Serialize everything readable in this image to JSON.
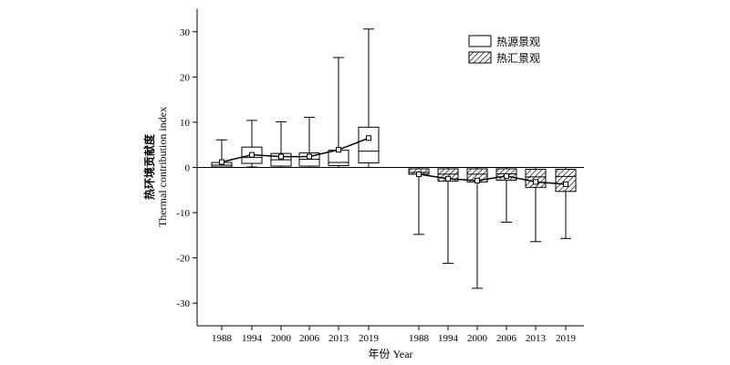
{
  "chart_data": {
    "type": "box",
    "title": "",
    "ylabel_cn": "热环境贡献度",
    "ylabel_en": "Thermal contribution index",
    "xlabel": "年份 Year",
    "ylim": [
      -35,
      35
    ],
    "yticks": [
      30,
      20,
      10,
      0,
      -10,
      -20,
      -30
    ],
    "grid": false,
    "legend_position": "top-right",
    "groups": [
      {
        "name": "热源景观",
        "pattern": "solid",
        "categories": [
          "1988",
          "1994",
          "2000",
          "2006",
          "2013",
          "2019"
        ],
        "boxes": [
          {
            "min": 0.0,
            "q1": 0.1,
            "median": 0.5,
            "q3": 1.1,
            "max": 6.1,
            "mean": 1.2
          },
          {
            "min": 0.1,
            "q1": 0.9,
            "median": 2.2,
            "q3": 4.5,
            "max": 10.4,
            "mean": 2.8
          },
          {
            "min": 0.0,
            "q1": 0.3,
            "median": 1.7,
            "q3": 3.1,
            "max": 10.1,
            "mean": 2.4
          },
          {
            "min": 0.0,
            "q1": 0.3,
            "median": 1.8,
            "q3": 3.2,
            "max": 11.1,
            "mean": 2.4
          },
          {
            "min": 0.0,
            "q1": 0.4,
            "median": 1.1,
            "q3": 3.8,
            "max": 24.3,
            "mean": 3.9
          },
          {
            "min": 0.0,
            "q1": 1.0,
            "median": 3.6,
            "q3": 8.9,
            "max": 30.6,
            "mean": 6.5
          }
        ]
      },
      {
        "name": "热汇景观",
        "pattern": "hatched",
        "categories": [
          "1988",
          "1994",
          "2000",
          "2006",
          "2013",
          "2019"
        ],
        "boxes": [
          {
            "min": -14.8,
            "q1": -1.5,
            "median": -1.1,
            "q3": -0.3,
            "max": 0.0,
            "mean": -1.5
          },
          {
            "min": -21.2,
            "q1": -3.0,
            "median": -1.5,
            "q3": -0.3,
            "max": 0.0,
            "mean": -2.5
          },
          {
            "min": -26.7,
            "q1": -3.2,
            "median": -1.5,
            "q3": -0.3,
            "max": 0.0,
            "mean": -2.9
          },
          {
            "min": -12.1,
            "q1": -2.8,
            "median": -1.4,
            "q3": -0.3,
            "max": 0.0,
            "mean": -1.9
          },
          {
            "min": -16.4,
            "q1": -4.4,
            "median": -2.1,
            "q3": -0.4,
            "max": 0.0,
            "mean": -3.2
          },
          {
            "min": -15.7,
            "q1": -5.3,
            "median": -2.0,
            "q3": -0.4,
            "max": 0.0,
            "mean": -3.7
          }
        ]
      }
    ]
  }
}
